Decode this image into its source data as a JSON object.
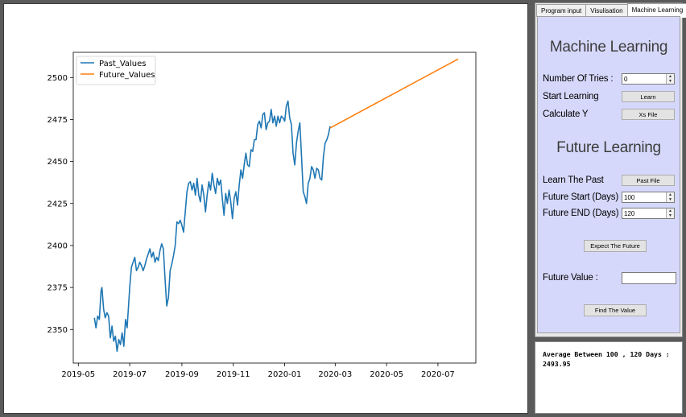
{
  "tabs": [
    {
      "label": "Program input"
    },
    {
      "label": "Visulisation"
    },
    {
      "label": "Machine Learning"
    }
  ],
  "machine_learning": {
    "heading": "Machine Learning",
    "tries_label": "Number Of Tries :",
    "tries_value": "0",
    "start_label": "Start Learning",
    "learn_button": "Learn",
    "calc_label": "Calculate Y",
    "xs_button": "Xs File"
  },
  "future_learning": {
    "heading": "Future Learning",
    "past_label": "Learn The Past",
    "past_button": "Past File",
    "start_label": "Future Start (Days) :",
    "start_value": "100",
    "end_label": "Future END (Days) :",
    "end_value": "120",
    "expect_button": "Expect The Future",
    "value_label": "Future Value :",
    "value_input": "",
    "find_button": "Find The Value"
  },
  "result": {
    "line1": "Average Between 100 , 120 Days :",
    "line2": "2493.95"
  },
  "chart_data": {
    "type": "line",
    "title": "",
    "xlabel": "",
    "ylabel": "",
    "x_ticks": [
      "2019-05",
      "2019-07",
      "2019-09",
      "2019-11",
      "2020-01",
      "2020-03",
      "2020-05",
      "2020-07"
    ],
    "y_ticks": [
      2350,
      2375,
      2400,
      2425,
      2450,
      2475,
      2500
    ],
    "xlim": [
      "2019-04-25",
      "2020-08-15"
    ],
    "ylim": [
      2330,
      2515
    ],
    "legend_position": "top-left",
    "series": [
      {
        "name": "Past_Values",
        "color": "#1f77b4",
        "points": [
          [
            "2019-05-20",
            2357
          ],
          [
            "2019-05-22",
            2351
          ],
          [
            "2019-05-24",
            2358
          ],
          [
            "2019-05-26",
            2356
          ],
          [
            "2019-05-28",
            2373
          ],
          [
            "2019-05-29",
            2375
          ],
          [
            "2019-05-31",
            2362
          ],
          [
            "2019-06-02",
            2357
          ],
          [
            "2019-06-04",
            2360
          ],
          [
            "2019-06-06",
            2358
          ],
          [
            "2019-06-08",
            2345
          ],
          [
            "2019-06-10",
            2352
          ],
          [
            "2019-06-12",
            2343
          ],
          [
            "2019-06-14",
            2346
          ],
          [
            "2019-06-16",
            2337
          ],
          [
            "2019-06-18",
            2344
          ],
          [
            "2019-06-20",
            2341
          ],
          [
            "2019-06-22",
            2348
          ],
          [
            "2019-06-24",
            2340
          ],
          [
            "2019-06-26",
            2356
          ],
          [
            "2019-06-28",
            2351
          ],
          [
            "2019-07-01",
            2375
          ],
          [
            "2019-07-03",
            2387
          ],
          [
            "2019-07-05",
            2390
          ],
          [
            "2019-07-07",
            2393
          ],
          [
            "2019-07-09",
            2385
          ],
          [
            "2019-07-11",
            2387
          ],
          [
            "2019-07-13",
            2390
          ],
          [
            "2019-07-15",
            2388
          ],
          [
            "2019-07-17",
            2385
          ],
          [
            "2019-07-19",
            2388
          ],
          [
            "2019-07-21",
            2392
          ],
          [
            "2019-07-23",
            2395
          ],
          [
            "2019-07-25",
            2398
          ],
          [
            "2019-07-27",
            2393
          ],
          [
            "2019-07-29",
            2396
          ],
          [
            "2019-07-31",
            2390
          ],
          [
            "2019-08-02",
            2393
          ],
          [
            "2019-08-04",
            2391
          ],
          [
            "2019-08-06",
            2397
          ],
          [
            "2019-08-08",
            2401
          ],
          [
            "2019-08-10",
            2398
          ],
          [
            "2019-08-12",
            2380
          ],
          [
            "2019-08-14",
            2364
          ],
          [
            "2019-08-16",
            2369
          ],
          [
            "2019-08-18",
            2385
          ],
          [
            "2019-08-20",
            2389
          ],
          [
            "2019-08-22",
            2394
          ],
          [
            "2019-08-24",
            2400
          ],
          [
            "2019-08-26",
            2414
          ],
          [
            "2019-08-28",
            2413
          ],
          [
            "2019-08-30",
            2415
          ],
          [
            "2019-09-01",
            2412
          ],
          [
            "2019-09-03",
            2408
          ],
          [
            "2019-09-05",
            2420
          ],
          [
            "2019-09-07",
            2432
          ],
          [
            "2019-09-09",
            2437
          ],
          [
            "2019-09-11",
            2438
          ],
          [
            "2019-09-13",
            2433
          ],
          [
            "2019-09-15",
            2437
          ],
          [
            "2019-09-17",
            2430
          ],
          [
            "2019-09-19",
            2440
          ],
          [
            "2019-09-21",
            2430
          ],
          [
            "2019-09-23",
            2426
          ],
          [
            "2019-09-25",
            2436
          ],
          [
            "2019-09-27",
            2430
          ],
          [
            "2019-09-29",
            2420
          ],
          [
            "2019-10-01",
            2430
          ],
          [
            "2019-10-03",
            2438
          ],
          [
            "2019-10-05",
            2433
          ],
          [
            "2019-10-07",
            2443
          ],
          [
            "2019-10-09",
            2436
          ],
          [
            "2019-10-11",
            2431
          ],
          [
            "2019-10-13",
            2440
          ],
          [
            "2019-10-15",
            2436
          ],
          [
            "2019-10-17",
            2439
          ],
          [
            "2019-10-19",
            2428
          ],
          [
            "2019-10-21",
            2418
          ],
          [
            "2019-10-23",
            2431
          ],
          [
            "2019-10-25",
            2425
          ],
          [
            "2019-10-27",
            2433
          ],
          [
            "2019-10-29",
            2426
          ],
          [
            "2019-10-31",
            2416
          ],
          [
            "2019-11-02",
            2428
          ],
          [
            "2019-11-04",
            2432
          ],
          [
            "2019-11-06",
            2424
          ],
          [
            "2019-11-08",
            2436
          ],
          [
            "2019-11-10",
            2445
          ],
          [
            "2019-11-12",
            2440
          ],
          [
            "2019-11-14",
            2448
          ],
          [
            "2019-11-16",
            2455
          ],
          [
            "2019-11-18",
            2448
          ],
          [
            "2019-11-20",
            2447
          ],
          [
            "2019-11-22",
            2457
          ],
          [
            "2019-11-24",
            2456
          ],
          [
            "2019-11-26",
            2463
          ],
          [
            "2019-11-28",
            2463
          ],
          [
            "2019-11-30",
            2472
          ],
          [
            "2019-12-02",
            2474
          ],
          [
            "2019-12-04",
            2470
          ],
          [
            "2019-12-06",
            2478
          ],
          [
            "2019-12-08",
            2479
          ],
          [
            "2019-12-10",
            2469
          ],
          [
            "2019-12-12",
            2473
          ],
          [
            "2019-12-14",
            2474
          ],
          [
            "2019-12-16",
            2481
          ],
          [
            "2019-12-18",
            2473
          ],
          [
            "2019-12-20",
            2477
          ],
          [
            "2019-12-22",
            2471
          ],
          [
            "2019-12-24",
            2477
          ],
          [
            "2019-12-26",
            2473
          ],
          [
            "2019-12-28",
            2477
          ],
          [
            "2019-12-30",
            2476
          ],
          [
            "2020-01-01",
            2474
          ],
          [
            "2020-01-03",
            2483
          ],
          [
            "2020-01-05",
            2486
          ],
          [
            "2020-01-07",
            2476
          ],
          [
            "2020-01-09",
            2472
          ],
          [
            "2020-01-11",
            2455
          ],
          [
            "2020-01-13",
            2448
          ],
          [
            "2020-01-15",
            2461
          ],
          [
            "2020-01-17",
            2468
          ],
          [
            "2020-01-19",
            2473
          ],
          [
            "2020-01-21",
            2453
          ],
          [
            "2020-01-23",
            2432
          ],
          [
            "2020-01-25",
            2429
          ],
          [
            "2020-01-27",
            2425
          ],
          [
            "2020-01-29",
            2437
          ],
          [
            "2020-01-31",
            2440
          ],
          [
            "2020-02-02",
            2447
          ],
          [
            "2020-02-04",
            2445
          ],
          [
            "2020-02-06",
            2440
          ],
          [
            "2020-02-08",
            2446
          ],
          [
            "2020-02-10",
            2445
          ],
          [
            "2020-02-12",
            2440
          ],
          [
            "2020-02-14",
            2439
          ],
          [
            "2020-02-16",
            2453
          ],
          [
            "2020-02-18",
            2461
          ],
          [
            "2020-02-20",
            2463
          ],
          [
            "2020-02-22",
            2466
          ],
          [
            "2020-02-24",
            2471
          ]
        ]
      },
      {
        "name": "Future_Values",
        "color": "#ff7f0e",
        "points": [
          [
            "2020-02-24",
            2470
          ],
          [
            "2020-07-25",
            2511
          ]
        ]
      }
    ]
  }
}
